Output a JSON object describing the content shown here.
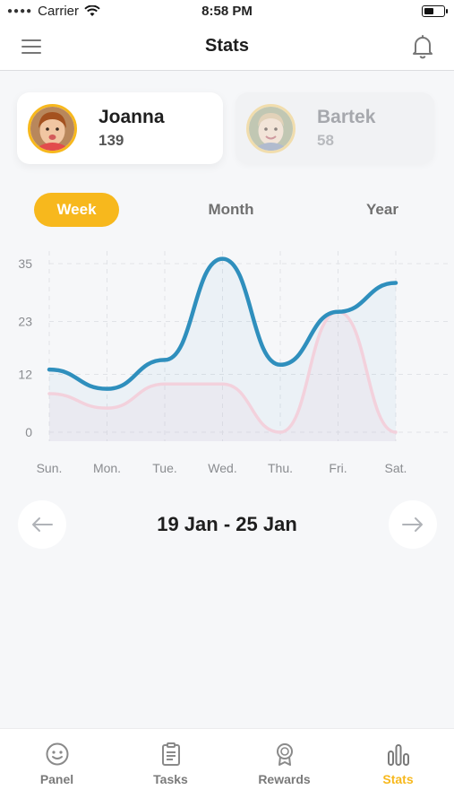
{
  "status_bar": {
    "carrier": "Carrier",
    "time": "8:58 PM"
  },
  "nav": {
    "title": "Stats",
    "menu_icon": "menu-icon",
    "bell_icon": "bell-icon"
  },
  "profiles": [
    {
      "name": "Joanna",
      "points": "139",
      "selected": true
    },
    {
      "name": "Bartek",
      "points": "58",
      "selected": false
    }
  ],
  "period_tabs": [
    {
      "label": "Week",
      "active": true
    },
    {
      "label": "Month",
      "active": false
    },
    {
      "label": "Year",
      "active": false
    }
  ],
  "chart_data": {
    "type": "line",
    "categories": [
      "Sun.",
      "Mon.",
      "Tue.",
      "Wed.",
      "Thu.",
      "Fri.",
      "Sat."
    ],
    "y_ticks": [
      "35",
      "23",
      "12",
      "0"
    ],
    "ylim": [
      0,
      35
    ],
    "grid": true,
    "series": [
      {
        "values": [
          13,
          9,
          15,
          36,
          14,
          25,
          31
        ],
        "color": "#2f8fbd"
      },
      {
        "values": [
          8,
          5,
          10,
          10,
          0,
          25,
          0
        ],
        "color": "#f3d1dc"
      }
    ]
  },
  "week_nav": {
    "range": "19 Jan - 25 Jan",
    "prev_icon": "arrow-left-icon",
    "next_icon": "arrow-right-icon"
  },
  "tab_bar": [
    {
      "label": "Panel",
      "icon": "smiley-icon",
      "active": false
    },
    {
      "label": "Tasks",
      "icon": "clipboard-icon",
      "active": false
    },
    {
      "label": "Rewards",
      "icon": "medal-icon",
      "active": false
    },
    {
      "label": "Stats",
      "icon": "bar-chart-icon",
      "active": true
    }
  ],
  "colors": {
    "accent": "#f7b81d",
    "series_primary": "#2f8fbd",
    "series_secondary": "#f3d1dc"
  }
}
